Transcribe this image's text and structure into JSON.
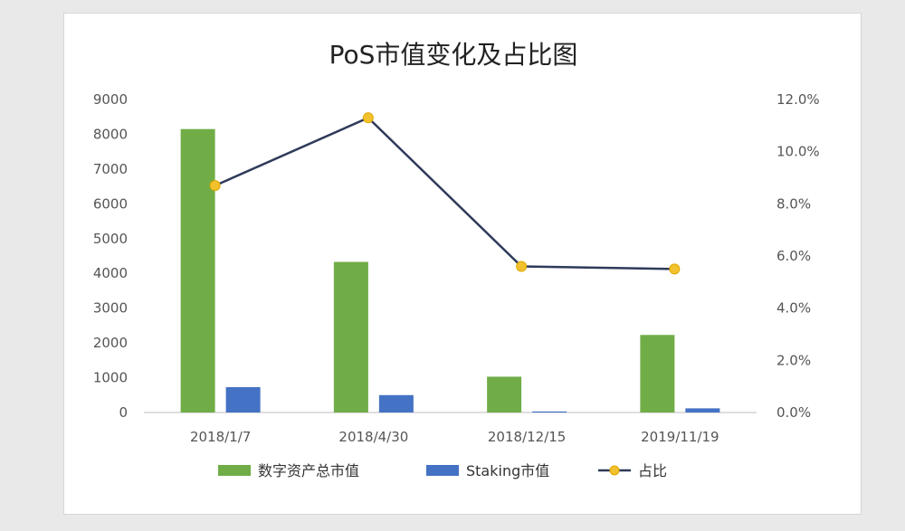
{
  "chart_data": {
    "type": "bar",
    "title": "PoS市值变化及占比图",
    "categories": [
      "2018/1/7",
      "2018/4/30",
      "2018/12/15",
      "2019/11/19"
    ],
    "series": [
      {
        "name": "数字资产总市值",
        "kind": "bar",
        "axis": "left",
        "color": "#70ad47",
        "values": [
          8150,
          4330,
          1030,
          2230
        ]
      },
      {
        "name": "Staking市值",
        "kind": "bar",
        "axis": "left",
        "color": "#4472c4",
        "values": [
          730,
          500,
          30,
          120
        ]
      },
      {
        "name": "占比",
        "kind": "line",
        "axis": "right",
        "color": "#2e3a59",
        "marker_color": "#f2c12e",
        "values": [
          8.7,
          11.3,
          5.6,
          5.5
        ]
      }
    ],
    "y_left": {
      "min": 0,
      "max": 9000,
      "step": 1000,
      "ticks": [
        "0",
        "1000",
        "2000",
        "3000",
        "4000",
        "5000",
        "6000",
        "7000",
        "8000",
        "9000"
      ]
    },
    "y_right": {
      "min": 0,
      "max": 12,
      "step": 2,
      "ticks": [
        "0.0%",
        "2.0%",
        "4.0%",
        "6.0%",
        "8.0%",
        "10.0%",
        "12.0%"
      ]
    },
    "grid": false,
    "legend": {
      "position": "bottom",
      "items": [
        "数字资产总市值",
        "Staking市值",
        "占比"
      ]
    }
  }
}
